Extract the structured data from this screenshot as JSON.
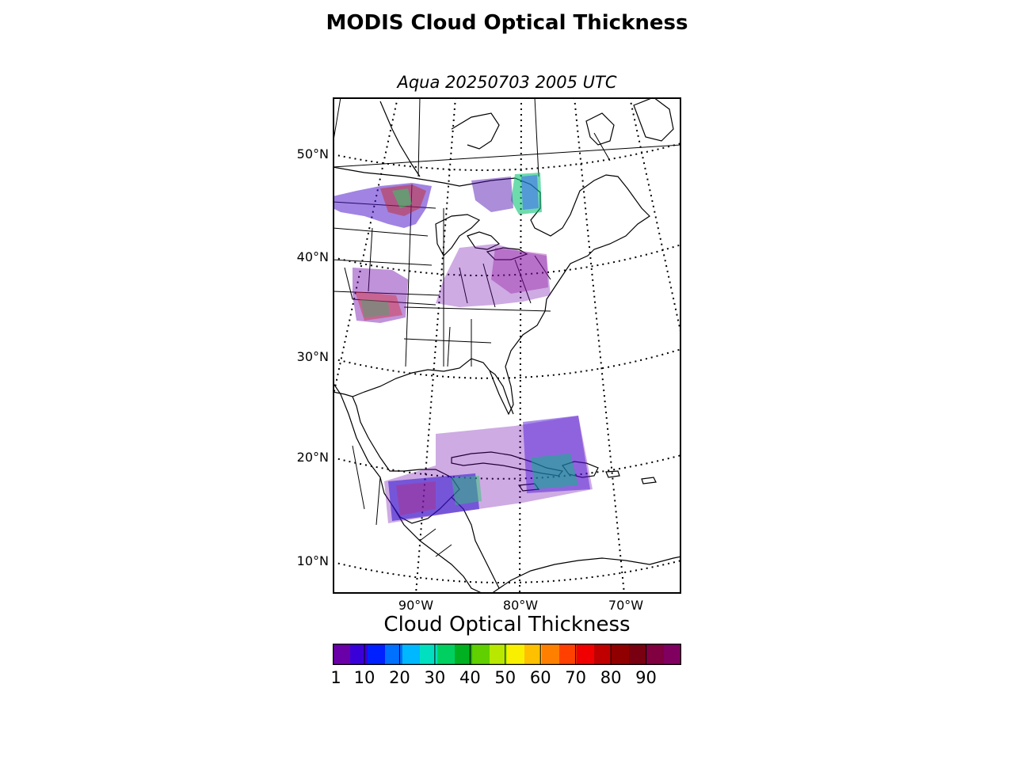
{
  "title": "MODIS Cloud Optical Thickness",
  "subtitle": "Aqua 20250703 2005 UTC",
  "map": {
    "projection": "lambert-conformal",
    "lat_labels": [
      "50°N",
      "40°N",
      "30°N",
      "20°N",
      "10°N"
    ],
    "lon_labels": [
      "90°W",
      "80°W",
      "70°W"
    ],
    "coastline_color": "#000000",
    "gridline_style": "dotted"
  },
  "colorbar": {
    "title": "Cloud Optical Thickness",
    "ticks": [
      "1",
      "10",
      "20",
      "30",
      "40",
      "50",
      "60",
      "70",
      "80",
      "90"
    ],
    "range": [
      1,
      100
    ],
    "colors": [
      "#6a00a8",
      "#3a00d8",
      "#0020ff",
      "#0070ff",
      "#00b8ff",
      "#00e0c0",
      "#00d060",
      "#00b020",
      "#60d000",
      "#b8e800",
      "#f8f000",
      "#ffc000",
      "#ff8000",
      "#ff4000",
      "#f00000",
      "#c00000",
      "#900000",
      "#780010",
      "#800040",
      "#800060"
    ]
  }
}
